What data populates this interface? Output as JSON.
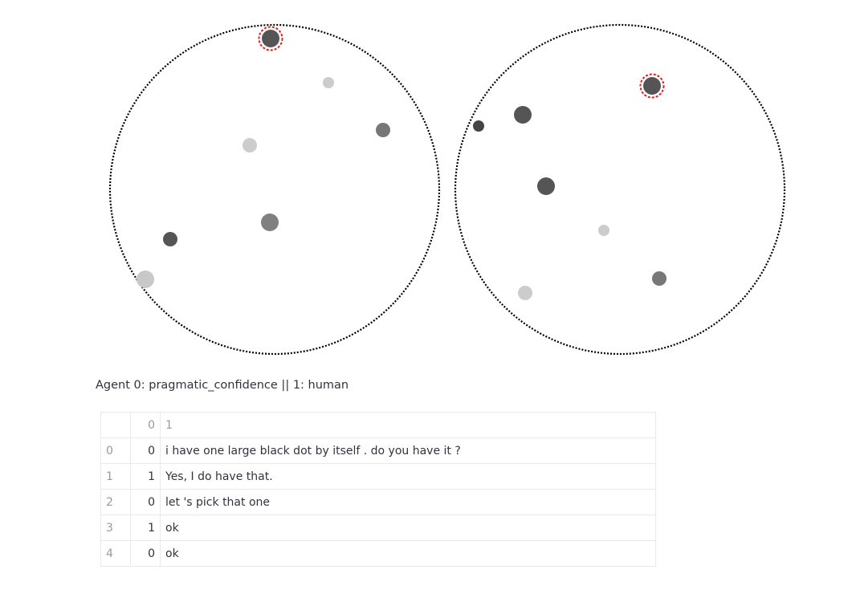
{
  "views": [
    {
      "name": "agent-0-view",
      "dots": [
        {
          "shade": "#555555",
          "size": "large",
          "selected": true
        },
        {
          "shade": "#cccccc",
          "size": "small",
          "selected": false
        },
        {
          "shade": "#777777",
          "size": "medium",
          "selected": false
        },
        {
          "shade": "#cccccc",
          "size": "medium",
          "selected": false
        },
        {
          "shade": "#808080",
          "size": "large",
          "selected": false
        },
        {
          "shade": "#555555",
          "size": "medium",
          "selected": false
        },
        {
          "shade": "#c8c8c8",
          "size": "large",
          "selected": false
        }
      ]
    },
    {
      "name": "agent-1-view",
      "dots": [
        {
          "shade": "#555555",
          "size": "large",
          "selected": true
        },
        {
          "shade": "#555555",
          "size": "large",
          "selected": false
        },
        {
          "shade": "#444444",
          "size": "small",
          "selected": false
        },
        {
          "shade": "#555555",
          "size": "large",
          "selected": false
        },
        {
          "shade": "#cccccc",
          "size": "small",
          "selected": false
        },
        {
          "shade": "#777777",
          "size": "medium",
          "selected": false
        },
        {
          "shade": "#cccccc",
          "size": "medium",
          "selected": false
        }
      ]
    }
  ],
  "selection_color": "#e0201b",
  "caption": "Agent 0: pragmatic_confidence || 1: human",
  "table": {
    "corner": "",
    "columns": [
      "0",
      "1"
    ],
    "rows": [
      {
        "index": "0",
        "speaker": "0",
        "text": "i have one large black dot by itself . do you have it ?"
      },
      {
        "index": "1",
        "speaker": "1",
        "text": "Yes, I do have that."
      },
      {
        "index": "2",
        "speaker": "0",
        "text": "let 's pick that one"
      },
      {
        "index": "3",
        "speaker": "1",
        "text": "ok"
      },
      {
        "index": "4",
        "speaker": "0",
        "text": "ok"
      }
    ]
  }
}
